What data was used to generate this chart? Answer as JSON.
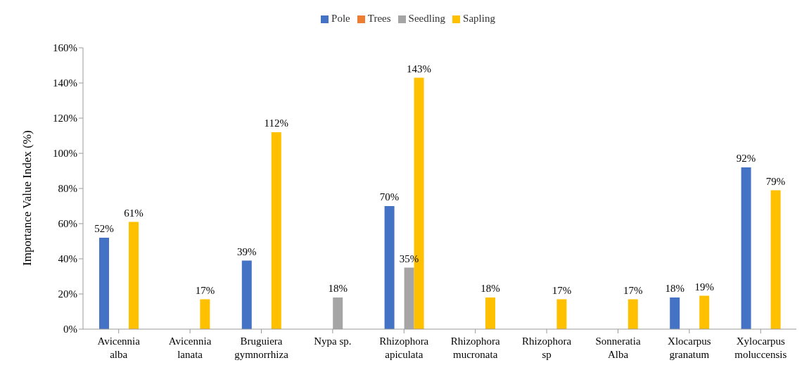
{
  "chart_data": {
    "type": "bar",
    "ylabel": "Importance Value Index  (%)",
    "categories": [
      "Avicennia\nalba",
      "Avicennia\nlanata",
      "Bruguiera\ngymnorrhiza",
      "Nypa sp.",
      "Rhizophora\napiculata",
      "Rhizophora\nmucronata",
      "Rhizophora\nsp",
      "Sonneratia\nAlba",
      "Xlocarpus\ngranatum",
      "Xylocarpus\nmoluccensis"
    ],
    "series": [
      {
        "name": "Pole",
        "color": "#4472c4",
        "values": [
          52,
          null,
          39,
          null,
          70,
          null,
          null,
          null,
          18,
          92
        ],
        "value_labels": [
          "52%",
          null,
          "39%",
          null,
          "70%",
          null,
          null,
          null,
          "18%",
          "92%"
        ]
      },
      {
        "name": "Trees",
        "color": "#ed7d31",
        "values": [
          null,
          null,
          null,
          null,
          null,
          null,
          null,
          null,
          null,
          null
        ]
      },
      {
        "name": "Seedling",
        "color": "#a5a5a5",
        "values": [
          null,
          null,
          null,
          18,
          35,
          null,
          null,
          null,
          null,
          null
        ],
        "value_labels": [
          null,
          null,
          null,
          "18%",
          "35%",
          null,
          null,
          null,
          null,
          null
        ]
      },
      {
        "name": "Sapling",
        "color": "#ffc000",
        "values": [
          61,
          17,
          112,
          null,
          143,
          18,
          17,
          17,
          19,
          79
        ],
        "value_labels": [
          "61%",
          "17%",
          "112%",
          null,
          "143%",
          "18%",
          "17%",
          "17%",
          "19%",
          "79%"
        ]
      }
    ],
    "ylim": [
      0,
      160
    ],
    "yticks": [
      {
        "value": 0,
        "label": "0%"
      },
      {
        "value": 20,
        "label": "20%"
      },
      {
        "value": 40,
        "label": "40%"
      },
      {
        "value": 60,
        "label": "60%"
      },
      {
        "value": 80,
        "label": "80%"
      },
      {
        "value": 100,
        "label": "100%"
      },
      {
        "value": 120,
        "label": "120%"
      },
      {
        "value": 140,
        "label": "140%"
      },
      {
        "value": 160,
        "label": "160%"
      }
    ],
    "grid": false,
    "legend": "top"
  }
}
